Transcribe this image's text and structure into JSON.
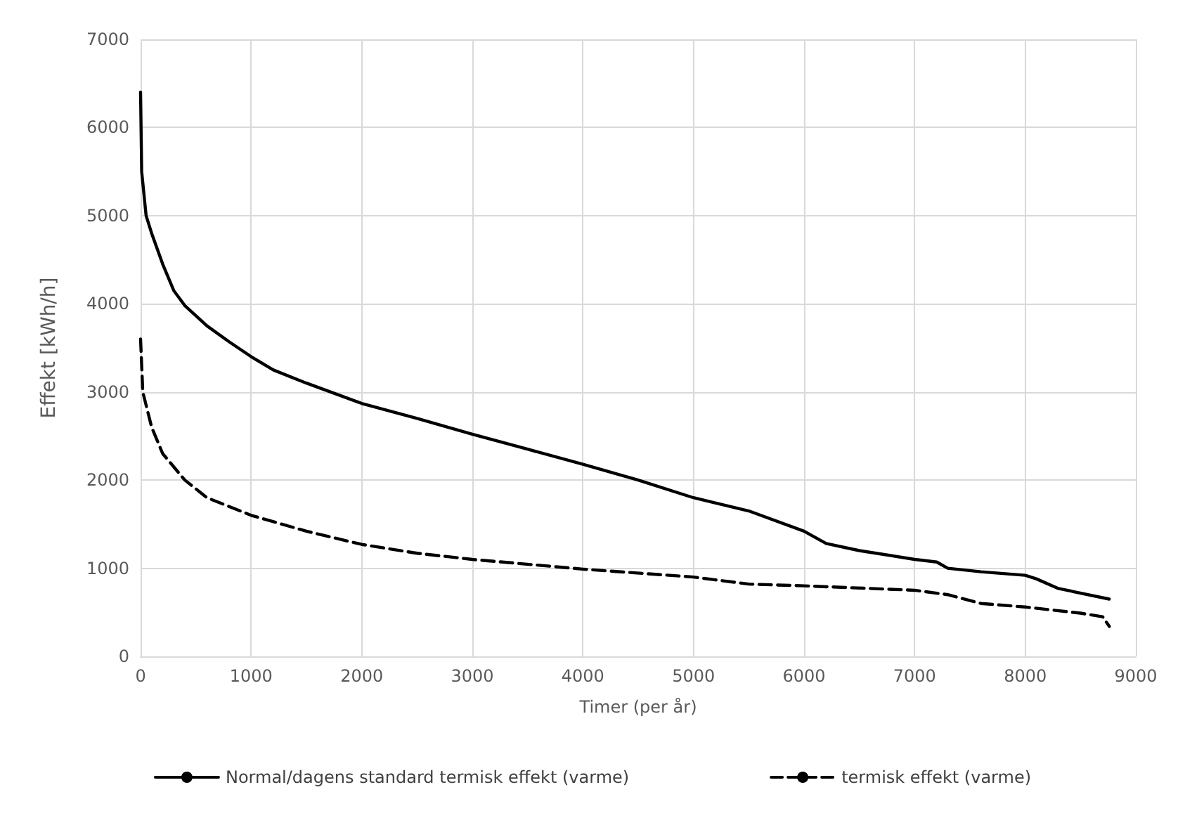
{
  "chart_data": {
    "type": "line",
    "xlabel": "Timer (per år)",
    "ylabel": "Effekt [kWh/h]",
    "xlim": [
      0,
      9000
    ],
    "xticks": [
      0,
      1000,
      2000,
      3000,
      4000,
      5000,
      6000,
      7000,
      8000,
      9000
    ],
    "ylim": [
      0,
      7000
    ],
    "yticks": [
      0,
      1000,
      2000,
      3000,
      4000,
      5000,
      6000,
      7000
    ],
    "grid": true,
    "legend": "bottom",
    "marker": "none",
    "series": [
      {
        "name": "Normal/dagens standard termisk effekt (varme)",
        "color": "#000000",
        "line_style": "solid",
        "x": [
          0,
          10,
          50,
          100,
          200,
          300,
          400,
          600,
          800,
          1000,
          1200,
          1500,
          2000,
          2500,
          3000,
          3500,
          4000,
          4500,
          5000,
          5500,
          6000,
          6200,
          6500,
          7000,
          7200,
          7300,
          7600,
          8000,
          8100,
          8300,
          8760
        ],
        "values": [
          6400,
          5500,
          5000,
          4800,
          4450,
          4150,
          3980,
          3750,
          3570,
          3400,
          3250,
          3100,
          2870,
          2700,
          2520,
          2350,
          2180,
          2000,
          1800,
          1650,
          1420,
          1280,
          1200,
          1100,
          1070,
          1000,
          960,
          920,
          880,
          770,
          650
        ]
      },
      {
        "name": "termisk effekt (varme)",
        "color": "#000000",
        "line_style": "dashed",
        "x": [
          0,
          20,
          100,
          200,
          400,
          600,
          1000,
          1500,
          2000,
          2500,
          3000,
          4000,
          5000,
          5500,
          6000,
          7000,
          7300,
          7600,
          8000,
          8500,
          8700,
          8760
        ],
        "values": [
          3600,
          3000,
          2600,
          2300,
          2000,
          1800,
          1600,
          1420,
          1270,
          1170,
          1100,
          990,
          900,
          820,
          800,
          750,
          700,
          600,
          560,
          490,
          450,
          340
        ]
      }
    ]
  }
}
